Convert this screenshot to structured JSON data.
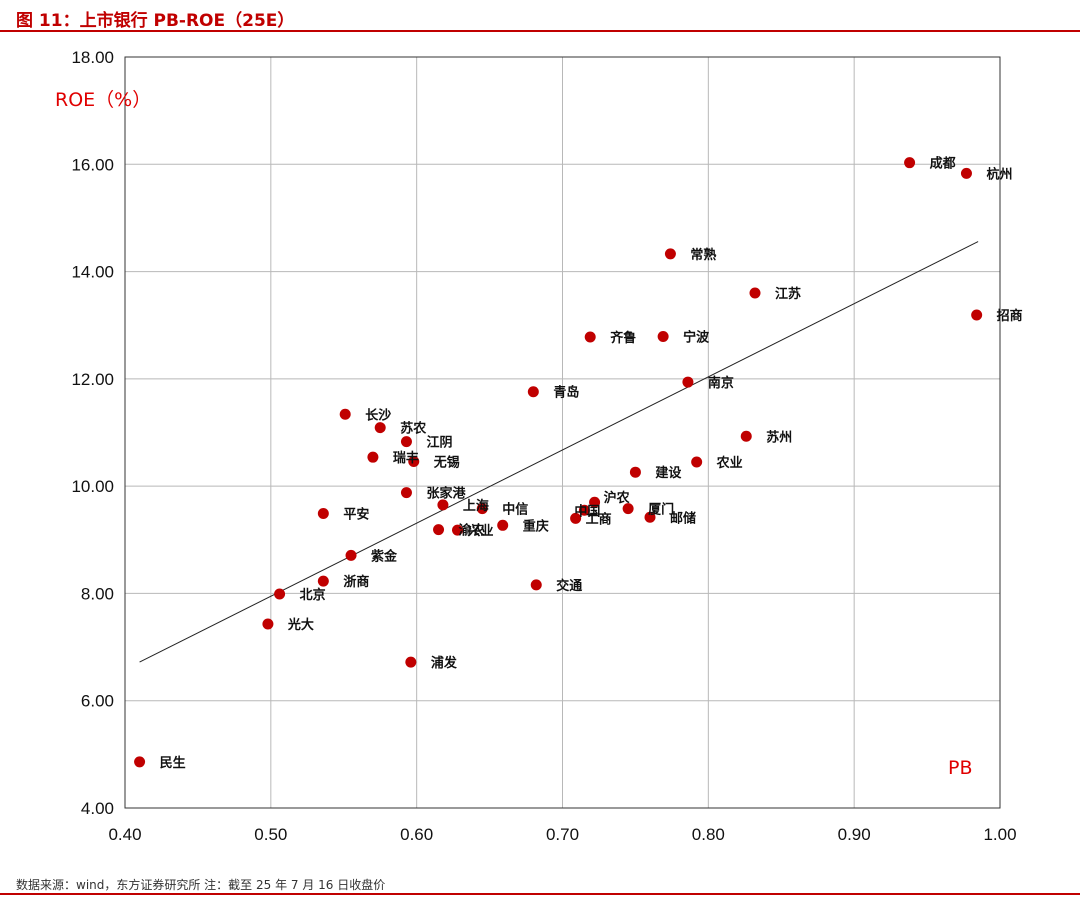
{
  "figure": {
    "title": "图 11：上市银行 PB-ROE（25E）",
    "source": "数据来源：wind，东方证券研究所 注：截至 25 年 7 月 16 日收盘价"
  },
  "chart_data": {
    "type": "scatter",
    "xlabel": "PB",
    "ylabel": "ROE（%）",
    "xlim": [
      0.4,
      1.0
    ],
    "ylim": [
      4.0,
      18.0
    ],
    "x_ticks": [
      "0.40",
      "0.50",
      "0.60",
      "0.70",
      "0.80",
      "0.90",
      "1.00"
    ],
    "y_ticks": [
      "4.00",
      "6.00",
      "8.00",
      "10.00",
      "12.00",
      "14.00",
      "16.00",
      "18.00"
    ],
    "grid": true,
    "marker_color": "#c00000",
    "trendline": {
      "x": [
        0.41,
        0.985
      ],
      "y": [
        6.72,
        14.56
      ]
    },
    "points": [
      {
        "name": "成都",
        "x": 0.938,
        "y": 16.03
      },
      {
        "name": "杭州",
        "x": 0.977,
        "y": 15.83
      },
      {
        "name": "常熟",
        "x": 0.774,
        "y": 14.33
      },
      {
        "name": "江苏",
        "x": 0.832,
        "y": 13.6
      },
      {
        "name": "招商",
        "x": 0.984,
        "y": 13.19
      },
      {
        "name": "齐鲁",
        "x": 0.719,
        "y": 12.78
      },
      {
        "name": "宁波",
        "x": 0.769,
        "y": 12.79
      },
      {
        "name": "南京",
        "x": 0.786,
        "y": 11.94
      },
      {
        "name": "青岛",
        "x": 0.68,
        "y": 11.76
      },
      {
        "name": "长沙",
        "x": 0.551,
        "y": 11.34
      },
      {
        "name": "苏农",
        "x": 0.575,
        "y": 11.09
      },
      {
        "name": "江阴",
        "x": 0.593,
        "y": 10.83
      },
      {
        "name": "苏州",
        "x": 0.826,
        "y": 10.93
      },
      {
        "name": "瑞丰",
        "x": 0.57,
        "y": 10.54
      },
      {
        "name": "无锡",
        "x": 0.598,
        "y": 10.46
      },
      {
        "name": "农业",
        "x": 0.792,
        "y": 10.45
      },
      {
        "name": "建设",
        "x": 0.75,
        "y": 10.26
      },
      {
        "name": "张家港",
        "x": 0.593,
        "y": 9.88
      },
      {
        "name": "上海",
        "x": 0.618,
        "y": 9.65
      },
      {
        "name": "沪农",
        "x": 0.722,
        "y": 9.7
      },
      {
        "name": "中信",
        "x": 0.645,
        "y": 9.58
      },
      {
        "name": "中国",
        "x": 0.715,
        "y": 9.55
      },
      {
        "name": "厦门",
        "x": 0.745,
        "y": 9.58
      },
      {
        "name": "平安",
        "x": 0.536,
        "y": 9.49
      },
      {
        "name": "工商",
        "x": 0.709,
        "y": 9.4
      },
      {
        "name": "邮储",
        "x": 0.76,
        "y": 9.42
      },
      {
        "name": "重庆",
        "x": 0.659,
        "y": 9.27
      },
      {
        "name": "渝农",
        "x": 0.615,
        "y": 9.19
      },
      {
        "name": "兴业",
        "x": 0.628,
        "y": 9.18
      },
      {
        "name": "紫金",
        "x": 0.555,
        "y": 8.71
      },
      {
        "name": "浙商",
        "x": 0.536,
        "y": 8.23
      },
      {
        "name": "交通",
        "x": 0.682,
        "y": 8.16
      },
      {
        "name": "北京",
        "x": 0.506,
        "y": 7.99
      },
      {
        "name": "光大",
        "x": 0.498,
        "y": 7.43
      },
      {
        "name": "浦发",
        "x": 0.596,
        "y": 6.72
      },
      {
        "name": "民生",
        "x": 0.41,
        "y": 4.86
      }
    ]
  }
}
